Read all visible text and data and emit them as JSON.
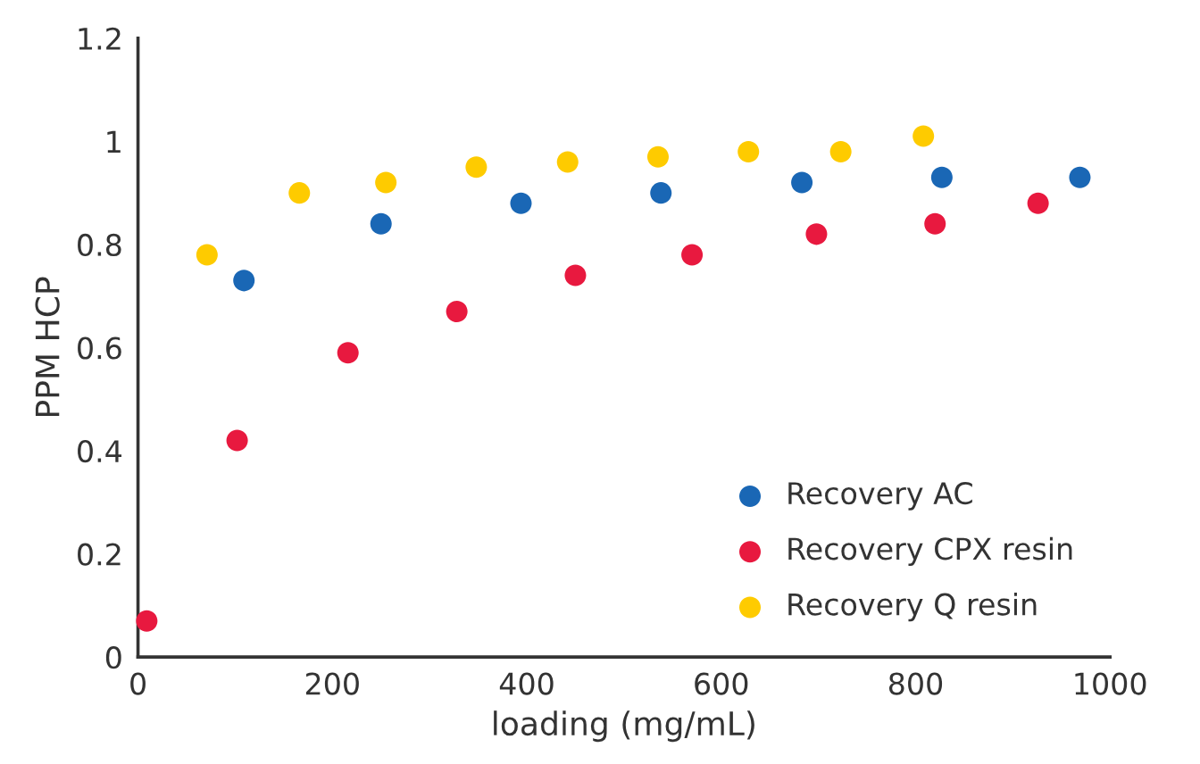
{
  "chart_data": {
    "type": "scatter",
    "xlabel": "loading (mg/mL)",
    "ylabel": "PPM HCP",
    "xlim": [
      0,
      1000
    ],
    "xticks": [
      0,
      200,
      400,
      600,
      800,
      1000
    ],
    "ylim": [
      0,
      1.2
    ],
    "yticks": [
      0,
      {
        "value": 0.2,
        "label": "0.2"
      },
      {
        "value": 0.4,
        "label": "0.4"
      },
      {
        "value": 0.6,
        "label": "0.6"
      },
      {
        "value": 0.8,
        "label": "0.8"
      },
      1,
      {
        "value": 1.2,
        "label": "1.2"
      }
    ],
    "grid": false,
    "legend": "bottom right",
    "marker": "circle",
    "series": [
      {
        "name": "Recovery AC",
        "color": "#1a67b5",
        "x": [
          109,
          250,
          394,
          538,
          683,
          827,
          969
        ],
        "values": [
          0.73,
          0.84,
          0.88,
          0.9,
          0.92,
          0.93,
          0.93
        ]
      },
      {
        "name": "Recovery CPX resin",
        "color": "#e8193f",
        "x": [
          9,
          102,
          216,
          328,
          450,
          570,
          698,
          820,
          926
        ],
        "values": [
          0.07,
          0.42,
          0.59,
          0.67,
          0.74,
          0.78,
          0.82,
          0.84,
          0.88
        ]
      },
      {
        "name": "Recovery Q resin",
        "color": "#fecb00",
        "x": [
          71,
          166,
          255,
          348,
          442,
          535,
          628,
          723,
          808
        ],
        "values": [
          0.78,
          0.9,
          0.92,
          0.95,
          0.96,
          0.97,
          0.98,
          0.98,
          1.01
        ]
      }
    ]
  }
}
